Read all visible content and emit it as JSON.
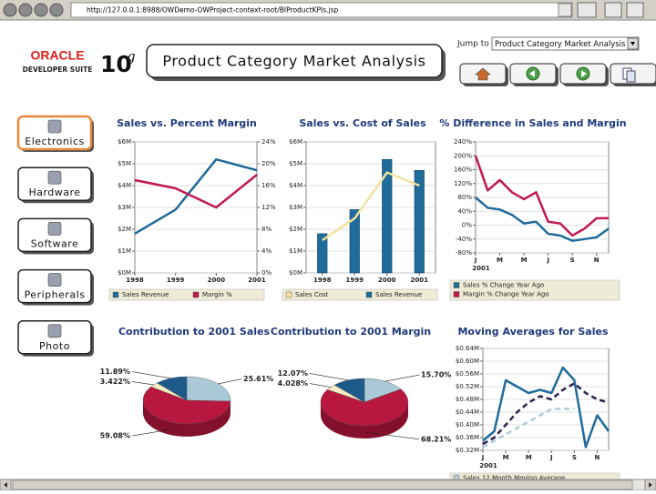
{
  "browser": {
    "url": "http://127.0.0.1:8988/OWDemo-OWProject-context-root/BIProductKPIs.jsp"
  },
  "header": {
    "logo_brand": "ORACLE",
    "logo_product": "DEVELOPER SUITE",
    "version_number": "10",
    "version_letter": "g",
    "title": "Product Category Market Analysis",
    "jump_label": "Jump to",
    "jump_selected": "Product Category Market Analysis"
  },
  "nav": {
    "categories": [
      "Electronics",
      "Hardware",
      "Software",
      "Peripherals",
      "Photo"
    ],
    "selected": 0
  },
  "chart_data": [
    {
      "type": "line",
      "title": "Sales vs. Percent Margin",
      "categories": [
        "1998",
        "1999",
        "2000",
        "2001"
      ],
      "series": [
        {
          "name": "Sales Revenue",
          "color": "#1f6b9a",
          "values": [
            1.8,
            2.9,
            5.2,
            4.7
          ]
        },
        {
          "name": "Margin %",
          "color": "#c0184f",
          "axis": "y2",
          "values": [
            17,
            15.5,
            12,
            18
          ]
        }
      ],
      "ylim": [
        0,
        6
      ],
      "yticks": [
        {
          "value": 0,
          "label": "$0M"
        },
        {
          "value": 1,
          "label": "$1M"
        },
        {
          "value": 2,
          "label": "$2M"
        },
        {
          "value": 3,
          "label": "$3M"
        },
        {
          "value": 4,
          "label": "$4M"
        },
        {
          "value": 5,
          "label": "$5M"
        },
        {
          "value": 6,
          "label": "$6M"
        }
      ],
      "y2lim": [
        0,
        24
      ],
      "y2ticks": [
        {
          "value": 0,
          "label": "0%"
        },
        {
          "value": 4,
          "label": "4%"
        },
        {
          "value": 8,
          "label": "8%"
        },
        {
          "value": 12,
          "label": "12%"
        },
        {
          "value": 16,
          "label": "16%"
        },
        {
          "value": 20,
          "label": "20%"
        },
        {
          "value": 24,
          "label": "24%"
        }
      ],
      "grid": true,
      "legend": "bottom"
    },
    {
      "type": "bar",
      "title": "Sales vs. Cost of Sales",
      "categories": [
        "1998",
        "1999",
        "2000",
        "2001"
      ],
      "series": [
        {
          "name": "Sales Cost",
          "color": "#f3e3a0",
          "type": "line",
          "values": [
            1.5,
            2.5,
            4.6,
            4.0
          ]
        },
        {
          "name": "Sales Revenue",
          "color": "#1f6b9a",
          "values": [
            1.8,
            2.9,
            5.2,
            4.7
          ]
        }
      ],
      "ylim": [
        0,
        6
      ],
      "yticks": [
        {
          "value": 0,
          "label": "$0M"
        },
        {
          "value": 1,
          "label": "$1M"
        },
        {
          "value": 2,
          "label": "$2M"
        },
        {
          "value": 3,
          "label": "$3M"
        },
        {
          "value": 4,
          "label": "$4M"
        },
        {
          "value": 5,
          "label": "$5M"
        },
        {
          "value": 6,
          "label": "$6M"
        }
      ],
      "grid": true,
      "legend": "bottom"
    },
    {
      "type": "line",
      "title": "% Difference in Sales and Margin",
      "xlabel": "2001",
      "categories": [
        "J",
        null,
        "M",
        null,
        "M",
        null,
        "J",
        null,
        "S",
        null,
        "N",
        null
      ],
      "series": [
        {
          "name": "Sales % Change Year Ago",
          "color": "#1f6b9a",
          "values": [
            80,
            50,
            45,
            30,
            5,
            10,
            -25,
            -30,
            -45,
            -40,
            -35,
            -10
          ]
        },
        {
          "name": "Margin % Change Year Ago",
          "color": "#c0184f",
          "values": [
            200,
            100,
            130,
            95,
            75,
            95,
            10,
            5,
            -30,
            -10,
            20,
            20
          ]
        }
      ],
      "ylim": [
        -80,
        240
      ],
      "yticks": [
        {
          "value": -80,
          "label": "-80%"
        },
        {
          "value": -40,
          "label": "-40%"
        },
        {
          "value": 0,
          "label": "0%"
        },
        {
          "value": 40,
          "label": "40%"
        },
        {
          "value": 80,
          "label": "80%"
        },
        {
          "value": 120,
          "label": "120%"
        },
        {
          "value": 160,
          "label": "160%"
        },
        {
          "value": 200,
          "label": "200%"
        },
        {
          "value": 240,
          "label": "240%"
        }
      ],
      "grid": true,
      "legend": "bottom"
    },
    {
      "type": "pie",
      "title": "Contribution to 2001 Sales",
      "values": [
        25.61,
        59.08,
        3.422,
        11.89
      ],
      "value_labels": [
        "25.61%",
        "59.08%",
        "3.422%",
        "11.89%"
      ],
      "colors": [
        "#a9cad6",
        "#b8173f",
        "#f4ecc4",
        "#1d5a8c"
      ]
    },
    {
      "type": "pie",
      "title": "Contribution to 2001 Margin",
      "values": [
        15.7,
        68.21,
        4.028,
        12.07
      ],
      "value_labels": [
        "15.70%",
        "68.21%",
        "4.028%",
        "12.07%"
      ],
      "colors": [
        "#a9cad6",
        "#b8173f",
        "#f4ecc4",
        "#1d5a8c"
      ]
    },
    {
      "type": "line",
      "title": "Moving Averages for Sales",
      "xlabel": "2001",
      "categories": [
        "J",
        null,
        "M",
        null,
        "M",
        null,
        "J",
        null,
        "S",
        null,
        "N",
        null
      ],
      "series": [
        {
          "color": "#1f6b9a",
          "values": [
            0.35,
            0.38,
            0.54,
            0.52,
            0.5,
            0.51,
            0.5,
            0.58,
            0.54,
            0.33,
            0.43,
            0.38
          ]
        },
        {
          "color": "#2e2150",
          "dash": true,
          "values": [
            0.34,
            0.36,
            0.4,
            0.44,
            0.47,
            0.49,
            0.48,
            0.51,
            0.53,
            0.5,
            0.48,
            0.47
          ]
        },
        {
          "name": "Sales 12 Month Moving Average",
          "color": "#b4ccd8",
          "dash": true,
          "values": [
            0.33,
            0.35,
            0.37,
            0.39,
            0.41,
            0.43,
            0.45,
            0.45,
            0.45,
            null,
            null,
            null
          ]
        }
      ],
      "ylim": [
        0.32,
        0.64
      ],
      "yticks": [
        {
          "value": 0.32,
          "label": "$0.32M"
        },
        {
          "value": 0.36,
          "label": "$0.36M"
        },
        {
          "value": 0.4,
          "label": "$0.40M"
        },
        {
          "value": 0.44,
          "label": "$0.44M"
        },
        {
          "value": 0.48,
          "label": "$0.48M"
        },
        {
          "value": 0.52,
          "label": "$0.52M"
        },
        {
          "value": 0.56,
          "label": "$0.56M"
        },
        {
          "value": 0.6,
          "label": "$0.60M"
        },
        {
          "value": 0.64,
          "label": "$0.64M"
        }
      ],
      "grid": true,
      "legend": "bottom"
    }
  ]
}
